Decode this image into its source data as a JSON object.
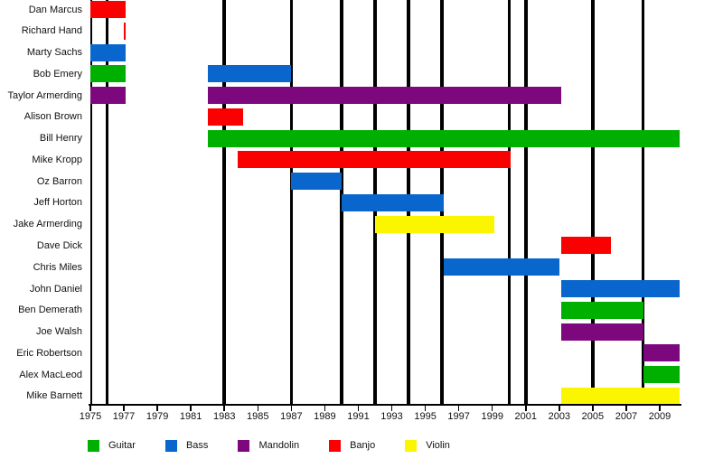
{
  "chart_data": {
    "type": "gantt-timeline",
    "background": "#FFFFFF",
    "axis_color": "#000000",
    "x_axis": {
      "range": [
        1975,
        2010.2
      ],
      "tick_years": [
        1975,
        1977,
        1979,
        1981,
        1983,
        1985,
        1987,
        1989,
        1991,
        1993,
        1995,
        1997,
        1999,
        2001,
        2003,
        2005,
        2007,
        2009
      ]
    },
    "event_line_years": [
      1976,
      1983,
      1987,
      1990,
      1992,
      1994,
      1996,
      2000,
      2001,
      2005,
      2008
    ],
    "instrument_colors": {
      "Guitar": "#00B000",
      "Bass": "#0966CC",
      "Mandolin": "#7D087D",
      "Banjo": "#FB0000",
      "Violin": "#FCF500"
    },
    "legend": [
      {
        "label": "Guitar",
        "instrument": "Guitar"
      },
      {
        "label": "Bass",
        "instrument": "Bass"
      },
      {
        "label": "Mandolin",
        "instrument": "Mandolin"
      },
      {
        "label": "Banjo",
        "instrument": "Banjo"
      },
      {
        "label": "Violin",
        "instrument": "Violin"
      }
    ],
    "members": [
      {
        "name": "Dan Marcus",
        "bars": [
          {
            "instrument": "Banjo",
            "from": 1975,
            "to": 1977.1
          }
        ]
      },
      {
        "name": "Richard Hand",
        "bars": [
          {
            "instrument": "Banjo",
            "from": 1977,
            "to": 1977.1
          }
        ]
      },
      {
        "name": "Marty Sachs",
        "bars": [
          {
            "instrument": "Bass",
            "from": 1975,
            "to": 1977.1
          }
        ]
      },
      {
        "name": "Bob Emery",
        "bars": [
          {
            "instrument": "Guitar",
            "from": 1975,
            "to": 1977.1
          },
          {
            "instrument": "Bass",
            "from": 1982,
            "to": 1987
          }
        ]
      },
      {
        "name": "Taylor Armerding",
        "bars": [
          {
            "instrument": "Mandolin",
            "from": 1975,
            "to": 1977.1
          },
          {
            "instrument": "Mandolin",
            "from": 1982,
            "to": 2003.1
          }
        ]
      },
      {
        "name": "Alison Brown",
        "bars": [
          {
            "instrument": "Banjo",
            "from": 1982,
            "to": 1984.1
          }
        ]
      },
      {
        "name": "Bill Henry",
        "bars": [
          {
            "instrument": "Guitar",
            "from": 1982,
            "to": 2010.2
          }
        ]
      },
      {
        "name": "Mike Kropp",
        "bars": [
          {
            "instrument": "Banjo",
            "from": 1983.8,
            "to": 2000.1
          }
        ]
      },
      {
        "name": "Oz Barron",
        "bars": [
          {
            "instrument": "Bass",
            "from": 1987,
            "to": 1990
          }
        ]
      },
      {
        "name": "Jeff Horton",
        "bars": [
          {
            "instrument": "Bass",
            "from": 1990,
            "to": 1996.1
          }
        ]
      },
      {
        "name": "Jake Armerding",
        "bars": [
          {
            "instrument": "Violin",
            "from": 1992,
            "to": 1999.1
          }
        ]
      },
      {
        "name": "Dave Dick",
        "bars": [
          {
            "instrument": "Banjo",
            "from": 2003.1,
            "to": 2006.1
          }
        ]
      },
      {
        "name": "Chris Miles",
        "bars": [
          {
            "instrument": "Bass",
            "from": 1996.1,
            "to": 2003
          }
        ]
      },
      {
        "name": "John Daniel",
        "bars": [
          {
            "instrument": "Bass",
            "from": 2003.1,
            "to": 2010.2
          }
        ]
      },
      {
        "name": "Ben Demerath",
        "bars": [
          {
            "instrument": "Guitar",
            "from": 2003.1,
            "to": 2008.05
          }
        ]
      },
      {
        "name": "Joe Walsh",
        "bars": [
          {
            "instrument": "Mandolin",
            "from": 2003.1,
            "to": 2008.05
          }
        ]
      },
      {
        "name": "Eric Robertson",
        "bars": [
          {
            "instrument": "Mandolin",
            "from": 2008.05,
            "to": 2010.2
          }
        ]
      },
      {
        "name": "Alex MacLeod",
        "bars": [
          {
            "instrument": "Guitar",
            "from": 2008.05,
            "to": 2010.2
          }
        ]
      },
      {
        "name": "Mike Barnett",
        "bars": [
          {
            "instrument": "Violin",
            "from": 2003.1,
            "to": 2010.2
          }
        ]
      }
    ]
  }
}
